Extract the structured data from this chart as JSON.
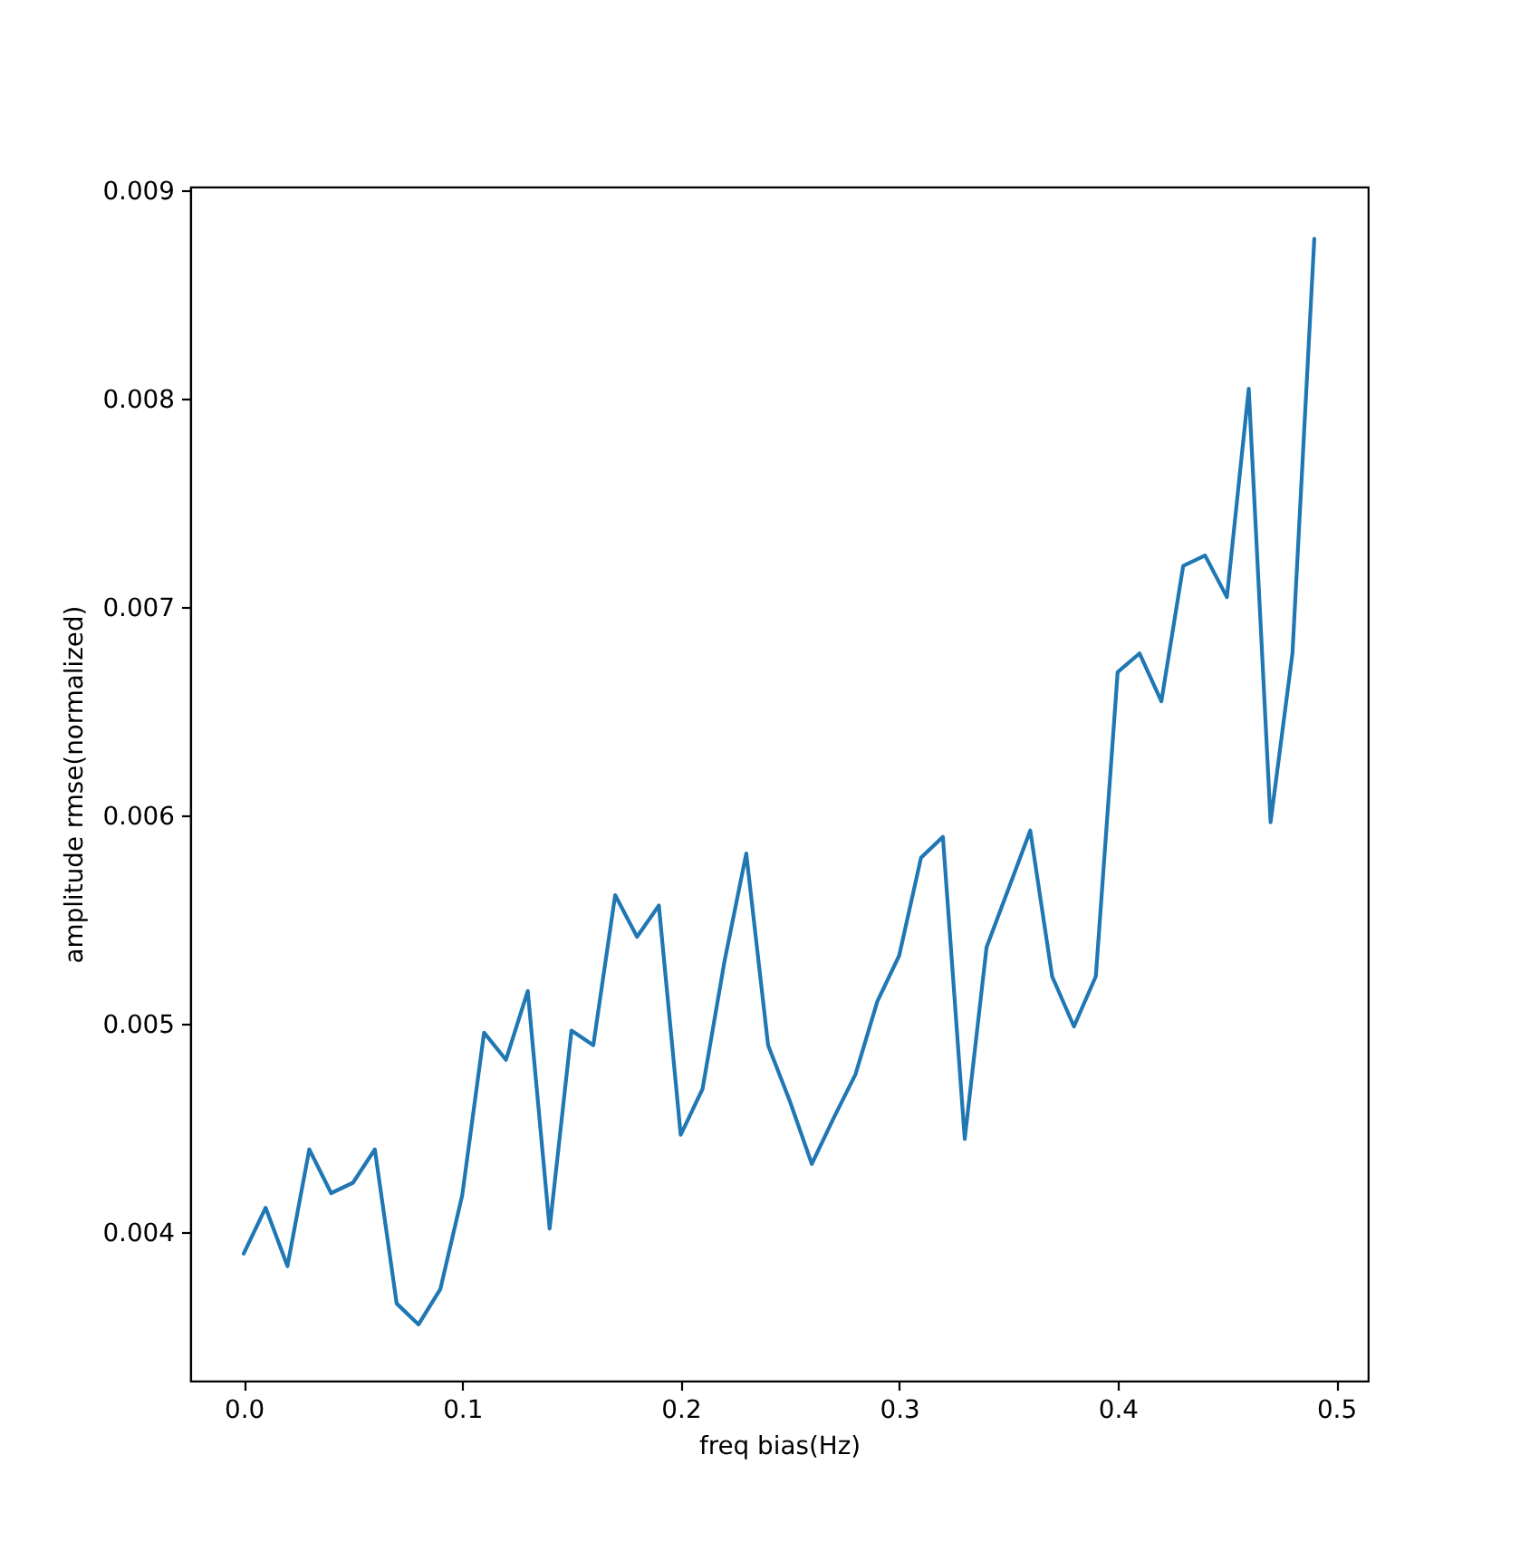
{
  "chart_data": {
    "type": "line",
    "xlabel": "freq bias(Hz)",
    "ylabel": "amplitude rmse(normalized)",
    "x": [
      0.0,
      0.01,
      0.02,
      0.03,
      0.04,
      0.05,
      0.06,
      0.07,
      0.08,
      0.09,
      0.1,
      0.11,
      0.12,
      0.13,
      0.14,
      0.15,
      0.16,
      0.17,
      0.18,
      0.19,
      0.2,
      0.21,
      0.22,
      0.23,
      0.24,
      0.25,
      0.26,
      0.27,
      0.28,
      0.29,
      0.3,
      0.31,
      0.32,
      0.33,
      0.34,
      0.35,
      0.36,
      0.37,
      0.38,
      0.39,
      0.4,
      0.41,
      0.42,
      0.43,
      0.44,
      0.45,
      0.46,
      0.47,
      0.48,
      0.49
    ],
    "series": [
      {
        "color": "#1f77b4",
        "values": [
          0.0039,
          0.00412,
          0.00384,
          0.0044,
          0.00419,
          0.00424,
          0.0044,
          0.00366,
          0.00356,
          0.00373,
          0.00418,
          0.00496,
          0.00483,
          0.00516,
          0.00402,
          0.00497,
          0.0049,
          0.00562,
          0.00542,
          0.00557,
          0.00447,
          0.00469,
          0.0053,
          0.00582,
          0.0049,
          0.00463,
          0.00433,
          0.00455,
          0.00476,
          0.00511,
          0.00533,
          0.0058,
          0.0059,
          0.00445,
          0.00537,
          0.00565,
          0.00593,
          0.00523,
          0.00499,
          0.00523,
          0.00669,
          0.00678,
          0.00655,
          0.0072,
          0.00725,
          0.00705,
          0.00805,
          0.00597,
          0.00678,
          0.00877
        ]
      }
    ],
    "xlim": [
      -0.0245,
      0.5145
    ],
    "xticks": [
      {
        "value": 0,
        "label": "0.0"
      },
      0.1,
      0.2,
      0.3,
      0.4,
      0.5
    ],
    "ylim": [
      0.00329,
      0.00902
    ],
    "yticks": [
      0.004,
      0.005,
      0.006,
      0.007,
      0.008,
      0.009
    ],
    "grid": false,
    "line_style": "solid",
    "marker": "none"
  }
}
